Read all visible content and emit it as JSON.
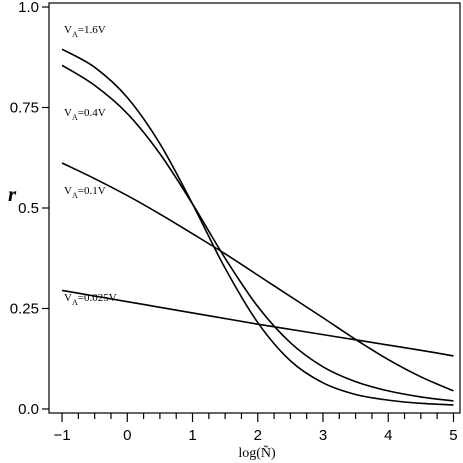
{
  "chart_data": {
    "type": "line",
    "xlabel": "log(Ñ)",
    "ylabel": "r",
    "xlim": [
      -1.2,
      5.1
    ],
    "ylim": [
      -0.01,
      1.01
    ],
    "x_ticks": [
      -1,
      0,
      1,
      2,
      3,
      4,
      5
    ],
    "x_tick_labels": [
      "−1",
      "0",
      "1",
      "2",
      "3",
      "4",
      "5"
    ],
    "x_minor_step": 0.25,
    "y_ticks": [
      0.0,
      0.25,
      0.5,
      0.75,
      1.0
    ],
    "y_tick_labels": [
      "0.0",
      "0.25",
      "0.5",
      "0.75",
      "1.0"
    ],
    "grid": false,
    "series": [
      {
        "name": "V_A=1.6V",
        "label_main": "V",
        "label_sub": "A",
        "label_rest": "=1.6V",
        "x": [
          -1.0,
          -0.5,
          0.0,
          0.5,
          1.0,
          1.5,
          2.0,
          2.5,
          3.0,
          3.5,
          4.0,
          4.5,
          5.0
        ],
        "y": [
          0.895,
          0.85,
          0.775,
          0.66,
          0.51,
          0.35,
          0.215,
          0.12,
          0.065,
          0.036,
          0.022,
          0.014,
          0.01
        ]
      },
      {
        "name": "V_A=0.4V",
        "label_main": "V",
        "label_sub": "A",
        "label_rest": "=0.4V",
        "x": [
          -1.0,
          -0.5,
          0.0,
          0.5,
          1.0,
          1.5,
          2.0,
          2.5,
          3.0,
          3.5,
          4.0,
          4.5,
          5.0
        ],
        "y": [
          0.855,
          0.805,
          0.735,
          0.635,
          0.51,
          0.375,
          0.255,
          0.165,
          0.105,
          0.068,
          0.045,
          0.03,
          0.02
        ]
      },
      {
        "name": "V_A=0.1V",
        "label_main": "V",
        "label_sub": "A",
        "label_rest": "=0.1V",
        "x": [
          -1.0,
          -0.5,
          0.0,
          0.5,
          1.0,
          1.5,
          2.0,
          2.5,
          3.0,
          3.5,
          4.0,
          4.5,
          5.0
        ],
        "y": [
          0.612,
          0.573,
          0.531,
          0.485,
          0.436,
          0.386,
          0.333,
          0.28,
          0.227,
          0.173,
          0.123,
          0.08,
          0.045
        ]
      },
      {
        "name": "V_A=0.025V",
        "label_main": "V",
        "label_sub": "A",
        "label_rest": "=0.025V",
        "x": [
          -1.0,
          -0.5,
          0.0,
          0.5,
          1.0,
          1.5,
          2.0,
          2.5,
          3.0,
          3.5,
          4.0,
          4.5,
          5.0
        ],
        "y": [
          0.295,
          0.281,
          0.267,
          0.253,
          0.239,
          0.225,
          0.211,
          0.198,
          0.185,
          0.172,
          0.159,
          0.146,
          0.132
        ]
      }
    ]
  }
}
